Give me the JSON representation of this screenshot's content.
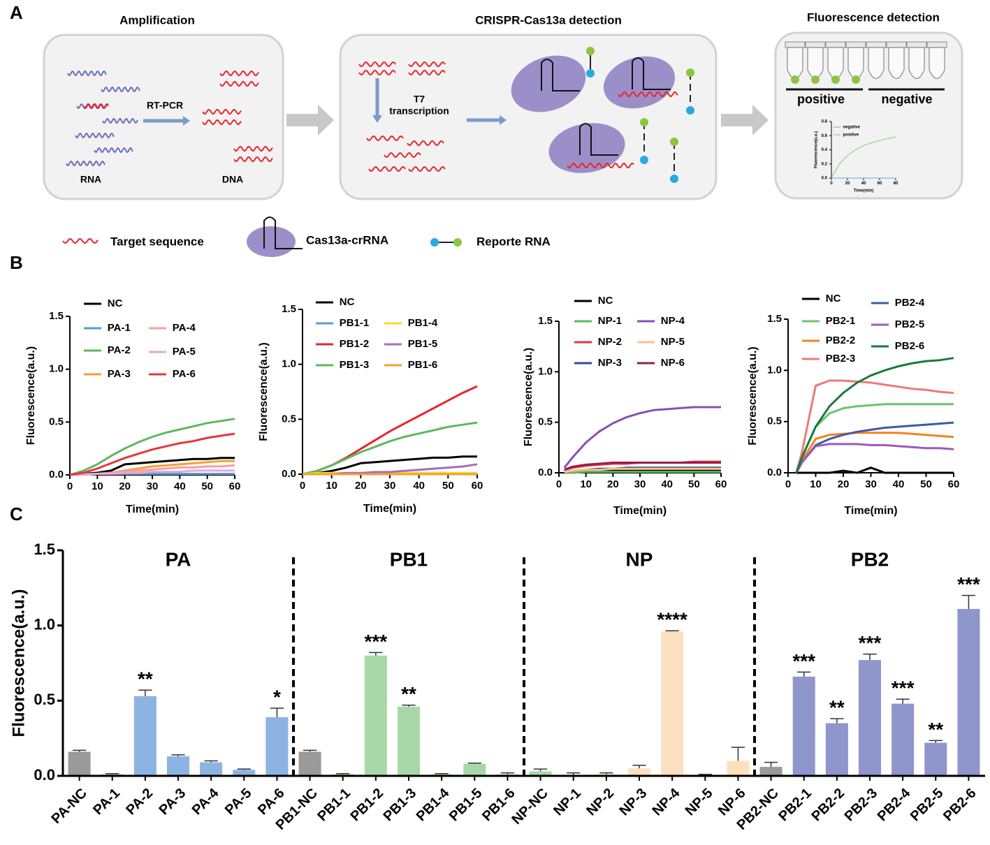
{
  "panel_labels": [
    "A",
    "B",
    "C"
  ],
  "diagram": {
    "amplification": {
      "title": "Amplification",
      "method": "RT-PCR",
      "input": "RNA",
      "output": "DNA"
    },
    "detection": {
      "title": "CRISPR-Cas13a detection",
      "step_lines": [
        "T7",
        "transcription"
      ]
    },
    "fluorescence": {
      "title": "Fluorescence detection",
      "positive": "positive",
      "negative": "negative"
    },
    "legend": [
      "Target sequence",
      "Cas13a-crRNA",
      "Reporte RNA"
    ]
  },
  "chart_data": [
    {
      "type": "line",
      "x_label": "Time(min)",
      "y_label": "Fluorescence(a.u.)",
      "x": [
        0,
        10,
        20,
        30,
        40,
        50,
        60,
        70,
        80
      ],
      "xlim": [
        0,
        80
      ],
      "xticks": [
        0,
        20,
        40,
        60,
        80
      ],
      "ylim": [
        0,
        0.8
      ],
      "yticks": [
        {
          "value": 0,
          "label": "0.0"
        },
        {
          "value": 0.2,
          "label": "0.2"
        },
        {
          "value": 0.4,
          "label": "0.4"
        },
        {
          "value": 0.6,
          "label": "0.6"
        },
        {
          "value": 0.8,
          "label": "0.8"
        }
      ],
      "series": [
        {
          "name": "negative",
          "color": "#6fa8dc",
          "values": [
            0,
            0,
            0,
            0,
            0,
            0,
            0,
            0,
            0
          ]
        },
        {
          "name": "positive",
          "color": "#7ccf6f",
          "values": [
            0,
            0.2,
            0.32,
            0.4,
            0.46,
            0.5,
            0.53,
            0.56,
            0.58
          ]
        }
      ]
    },
    {
      "type": "line",
      "x_label": "Time(min)",
      "y_label": "Fluorescence(a.u.)",
      "x": [
        0,
        5,
        10,
        15,
        20,
        25,
        30,
        35,
        40,
        45,
        50,
        55,
        60
      ],
      "xlim": [
        0,
        60
      ],
      "xticks": [
        0,
        10,
        20,
        30,
        40,
        50,
        60
      ],
      "ylim": [
        0,
        1.5
      ],
      "yticks": [
        {
          "value": 0,
          "label": "0.0"
        },
        {
          "value": 0.5,
          "label": "0.5"
        },
        {
          "value": 1,
          "label": "1.0"
        },
        {
          "value": 1.5,
          "label": "1.5"
        }
      ],
      "series": [
        {
          "name": "NC",
          "color": "#000000",
          "values": [
            0,
            0.01,
            0.02,
            0.04,
            0.1,
            0.11,
            0.12,
            0.13,
            0.14,
            0.15,
            0.15,
            0.16,
            0.16
          ]
        },
        {
          "name": "PA-1",
          "color": "#5b9bd5",
          "values": [
            0,
            0.01,
            0.01,
            0.01,
            0.01,
            0.01,
            0.01,
            0.01,
            0.01,
            0.01,
            0.01,
            0.01,
            0.01
          ]
        },
        {
          "name": "PA-2",
          "color": "#5cb85c",
          "values": [
            0,
            0.04,
            0.1,
            0.18,
            0.25,
            0.31,
            0.36,
            0.4,
            0.43,
            0.46,
            0.49,
            0.51,
            0.53
          ]
        },
        {
          "name": "PA-3",
          "color": "#f5a030",
          "values": [
            0,
            0,
            0.01,
            0.02,
            0.04,
            0.06,
            0.08,
            0.09,
            0.1,
            0.11,
            0.12,
            0.13,
            0.13
          ]
        },
        {
          "name": "PA-4",
          "color": "#f4a0a0",
          "values": [
            0,
            0,
            0.01,
            0.02,
            0.03,
            0.04,
            0.05,
            0.06,
            0.07,
            0.07,
            0.08,
            0.08,
            0.09
          ]
        },
        {
          "name": "PA-5",
          "color": "#e6a8d8",
          "values": [
            0,
            0,
            0.01,
            0.01,
            0.02,
            0.02,
            0.03,
            0.03,
            0.03,
            0.04,
            0.04,
            0.04,
            0.04
          ]
        },
        {
          "name": "PA-6",
          "color": "#e8353a",
          "values": [
            0,
            0.02,
            0.06,
            0.11,
            0.16,
            0.2,
            0.24,
            0.27,
            0.3,
            0.32,
            0.35,
            0.37,
            0.39
          ]
        }
      ]
    },
    {
      "type": "line",
      "x_label": "Time(min)",
      "y_label": "Fluorescence(a.u.)",
      "x": [
        0,
        5,
        10,
        15,
        20,
        25,
        30,
        35,
        40,
        45,
        50,
        55,
        60
      ],
      "xlim": [
        0,
        60
      ],
      "xticks": [
        0,
        10,
        20,
        30,
        40,
        50,
        60
      ],
      "ylim": [
        0,
        1.5
      ],
      "yticks": [
        {
          "value": 0,
          "label": "0.0"
        },
        {
          "value": 0.5,
          "label": "0.5"
        },
        {
          "value": 1,
          "label": "1.0"
        },
        {
          "value": 1.5,
          "label": "1.5"
        }
      ],
      "series": [
        {
          "name": "NC",
          "color": "#000000",
          "values": [
            0,
            0.01,
            0.03,
            0.06,
            0.1,
            0.11,
            0.12,
            0.13,
            0.14,
            0.15,
            0.15,
            0.16,
            0.16
          ]
        },
        {
          "name": "PB1-1",
          "color": "#5b9bd5",
          "values": [
            0,
            0.01,
            0.01,
            0.01,
            0.01,
            0.01,
            0.01,
            0.01,
            0.01,
            0.01,
            0.01,
            0.01,
            0.01
          ]
        },
        {
          "name": "PB1-2",
          "color": "#e8252a",
          "values": [
            0,
            0.03,
            0.08,
            0.15,
            0.23,
            0.31,
            0.39,
            0.46,
            0.53,
            0.6,
            0.67,
            0.74,
            0.8
          ]
        },
        {
          "name": "PB1-3",
          "color": "#5cb85c",
          "values": [
            0,
            0.03,
            0.08,
            0.14,
            0.2,
            0.25,
            0.3,
            0.34,
            0.37,
            0.4,
            0.43,
            0.45,
            0.47
          ]
        },
        {
          "name": "PB1-4",
          "color": "#f2e020",
          "values": [
            0,
            0.01,
            0.01,
            0.01,
            0.01,
            0.01,
            0.01,
            0.01,
            0.01,
            0.01,
            0.01,
            0.01,
            0.01
          ]
        },
        {
          "name": "PB1-5",
          "color": "#a56cc1",
          "values": [
            0,
            0,
            0,
            0.01,
            0.01,
            0.02,
            0.02,
            0.03,
            0.04,
            0.05,
            0.06,
            0.07,
            0.09
          ]
        },
        {
          "name": "PB1-6",
          "color": "#f5a030",
          "values": [
            0,
            0,
            0,
            0,
            0,
            0,
            0,
            0,
            0,
            0,
            0,
            0,
            0
          ]
        }
      ]
    },
    {
      "type": "line",
      "x_label": "Time(min)",
      "y_label": "Fluorescence(a.u.)",
      "x": [
        2,
        5,
        10,
        15,
        20,
        25,
        30,
        35,
        40,
        45,
        50,
        55,
        60
      ],
      "xlim": [
        0,
        60
      ],
      "xticks": [
        0,
        10,
        20,
        30,
        40,
        50,
        60
      ],
      "ylim": [
        0,
        1.5
      ],
      "yticks": [
        {
          "value": 0,
          "label": "0.0"
        },
        {
          "value": 0.5,
          "label": "0.5"
        },
        {
          "value": 1,
          "label": "1.0"
        },
        {
          "value": 1.5,
          "label": "1.5"
        }
      ],
      "series": [
        {
          "name": "NC",
          "color": "#000000",
          "values": [
            0.01,
            0.01,
            0.02,
            0.02,
            0.02,
            0.02,
            0.02,
            0.02,
            0.02,
            0.02,
            0.02,
            0.02,
            0.02
          ]
        },
        {
          "name": "NP-1",
          "color": "#5cb85c",
          "values": [
            0,
            0,
            0.01,
            0.01,
            0.01,
            0.01,
            0.01,
            0.01,
            0.01,
            0.01,
            0.01,
            0.01,
            0.01
          ]
        },
        {
          "name": "NP-2",
          "color": "#e8353a",
          "values": [
            0.03,
            0.05,
            0.07,
            0.08,
            0.09,
            0.09,
            0.1,
            0.1,
            0.1,
            0.1,
            0.11,
            0.11,
            0.11
          ]
        },
        {
          "name": "NP-3",
          "color": "#2f4a9a",
          "values": [
            0.01,
            0.02,
            0.03,
            0.04,
            0.04,
            0.05,
            0.05,
            0.05,
            0.05,
            0.05,
            0.05,
            0.05,
            0.05
          ]
        },
        {
          "name": "NP-4",
          "color": "#8a4fb0",
          "values": [
            0.05,
            0.15,
            0.3,
            0.41,
            0.49,
            0.55,
            0.59,
            0.62,
            0.63,
            0.64,
            0.65,
            0.65,
            0.65
          ]
        },
        {
          "name": "NP-5",
          "color": "#fbc08a",
          "values": [
            0.01,
            0.02,
            0.03,
            0.03,
            0.04,
            0.04,
            0.04,
            0.04,
            0.04,
            0.04,
            0.04,
            0.04,
            0.04
          ]
        },
        {
          "name": "NP-6",
          "color": "#9b1b4a",
          "values": [
            0.03,
            0.06,
            0.08,
            0.09,
            0.1,
            0.1,
            0.1,
            0.1,
            0.1,
            0.1,
            0.1,
            0.1,
            0.1
          ]
        }
      ]
    },
    {
      "type": "line",
      "x_label": "Time(min)",
      "y_label": "Fluorescence(a.u.)",
      "x": [
        3,
        5,
        10,
        15,
        20,
        25,
        30,
        35,
        40,
        45,
        50,
        55,
        60
      ],
      "xlim": [
        0,
        60
      ],
      "xticks": [
        0,
        10,
        20,
        30,
        40,
        50,
        60
      ],
      "ylim": [
        0,
        1.5
      ],
      "yticks": [
        {
          "value": 0,
          "label": "0.0"
        },
        {
          "value": 0.5,
          "label": "0.5"
        },
        {
          "value": 1,
          "label": "1.0"
        },
        {
          "value": 1.5,
          "label": "1.5"
        }
      ],
      "series": [
        {
          "name": "NC",
          "color": "#000000",
          "values": [
            0,
            0,
            0,
            0,
            0.02,
            0,
            0.05,
            0,
            0,
            0,
            0,
            0,
            0
          ]
        },
        {
          "name": "PB2-1",
          "color": "#6cc46c",
          "values": [
            0,
            0.15,
            0.45,
            0.58,
            0.63,
            0.65,
            0.66,
            0.67,
            0.67,
            0.67,
            0.67,
            0.67,
            0.67
          ]
        },
        {
          "name": "PB2-2",
          "color": "#f5821f",
          "values": [
            0,
            0.12,
            0.33,
            0.37,
            0.38,
            0.39,
            0.39,
            0.39,
            0.39,
            0.38,
            0.37,
            0.36,
            0.35
          ]
        },
        {
          "name": "PB2-3",
          "color": "#f07878",
          "values": [
            0,
            0.2,
            0.85,
            0.9,
            0.9,
            0.89,
            0.88,
            0.86,
            0.84,
            0.82,
            0.81,
            0.79,
            0.78
          ]
        },
        {
          "name": "PB2-4",
          "color": "#3a5bab",
          "values": [
            0,
            0.1,
            0.27,
            0.33,
            0.37,
            0.4,
            0.42,
            0.44,
            0.45,
            0.46,
            0.47,
            0.48,
            0.49
          ]
        },
        {
          "name": "PB2-5",
          "color": "#9a5cb8",
          "values": [
            0,
            0.1,
            0.26,
            0.28,
            0.28,
            0.28,
            0.27,
            0.27,
            0.26,
            0.25,
            0.24,
            0.24,
            0.23
          ]
        },
        {
          "name": "PB2-6",
          "color": "#1a7a3a",
          "values": [
            0,
            0.15,
            0.45,
            0.65,
            0.78,
            0.88,
            0.95,
            1.0,
            1.04,
            1.07,
            1.09,
            1.1,
            1.12
          ]
        }
      ]
    },
    {
      "type": "bar",
      "y_label": "Fluorescence(a.u.)",
      "groups": [
        "PA",
        "PB1",
        "NP",
        "PB2"
      ],
      "categories": [
        "PA-NC",
        "PA-1",
        "PA-2",
        "PA-3",
        "PA-4",
        "PA-5",
        "PA-6",
        "PB1-NC",
        "PB1-1",
        "PB1-2",
        "PB1-3",
        "PB1-4",
        "PB1-5",
        "PB1-6",
        "NP-NC",
        "NP-1",
        "NP-2",
        "NP-3",
        "NP-4",
        "NP-5",
        "NP-6",
        "PB2-NC",
        "PB2-1",
        "PB2-2",
        "PB2-3",
        "PB2-4",
        "PB2-5",
        "PB2-6"
      ],
      "values": [
        0.16,
        0.01,
        0.53,
        0.13,
        0.09,
        0.04,
        0.39,
        0.16,
        0.01,
        0.8,
        0.46,
        0.01,
        0.08,
        0.01,
        0.03,
        0,
        0.01,
        0.05,
        0.96,
        0.005,
        0.1,
        0.06,
        0.66,
        0.35,
        0.77,
        0.48,
        0.22,
        1.11
      ],
      "errors": [
        0.01,
        0.005,
        0.04,
        0.01,
        0.01,
        0.005,
        0.06,
        0.01,
        0.005,
        0.02,
        0.01,
        0.005,
        0.005,
        0.01,
        0.015,
        0.02,
        0.01,
        0.02,
        0.005,
        0.005,
        0.09,
        0.03,
        0.03,
        0.03,
        0.04,
        0.03,
        0.015,
        0.09
      ],
      "colors": [
        "#9a9a9a",
        "#8db3e2",
        "#8db3e2",
        "#8db3e2",
        "#8db3e2",
        "#8db3e2",
        "#8db3e2",
        "#9a9a9a",
        "#a8d8a8",
        "#a8d8a8",
        "#a8d8a8",
        "#a8d8a8",
        "#a8d8a8",
        "#a8d8a8",
        "#a8d8a8",
        "#fde0c0",
        "#fde0c0",
        "#fde0c0",
        "#fde0c0",
        "#fde0c0",
        "#fde0c0",
        "#9a9a9a",
        "#8f96cc",
        "#8f96cc",
        "#8f96cc",
        "#8f96cc",
        "#8f96cc",
        "#8f96cc"
      ],
      "annotations": [
        null,
        null,
        "**",
        null,
        null,
        null,
        "*",
        null,
        null,
        "***",
        "**",
        null,
        null,
        null,
        null,
        null,
        null,
        null,
        "****",
        null,
        null,
        null,
        "***",
        "**",
        "***",
        "***",
        "**",
        "***"
      ],
      "ylim": [
        0,
        1.5
      ],
      "yticks": [
        {
          "value": 0,
          "label": "0.0"
        },
        {
          "value": 0.5,
          "label": "0.5"
        },
        {
          "value": 1,
          "label": "1.0"
        },
        {
          "value": 1.5,
          "label": "1.5"
        }
      ]
    }
  ]
}
